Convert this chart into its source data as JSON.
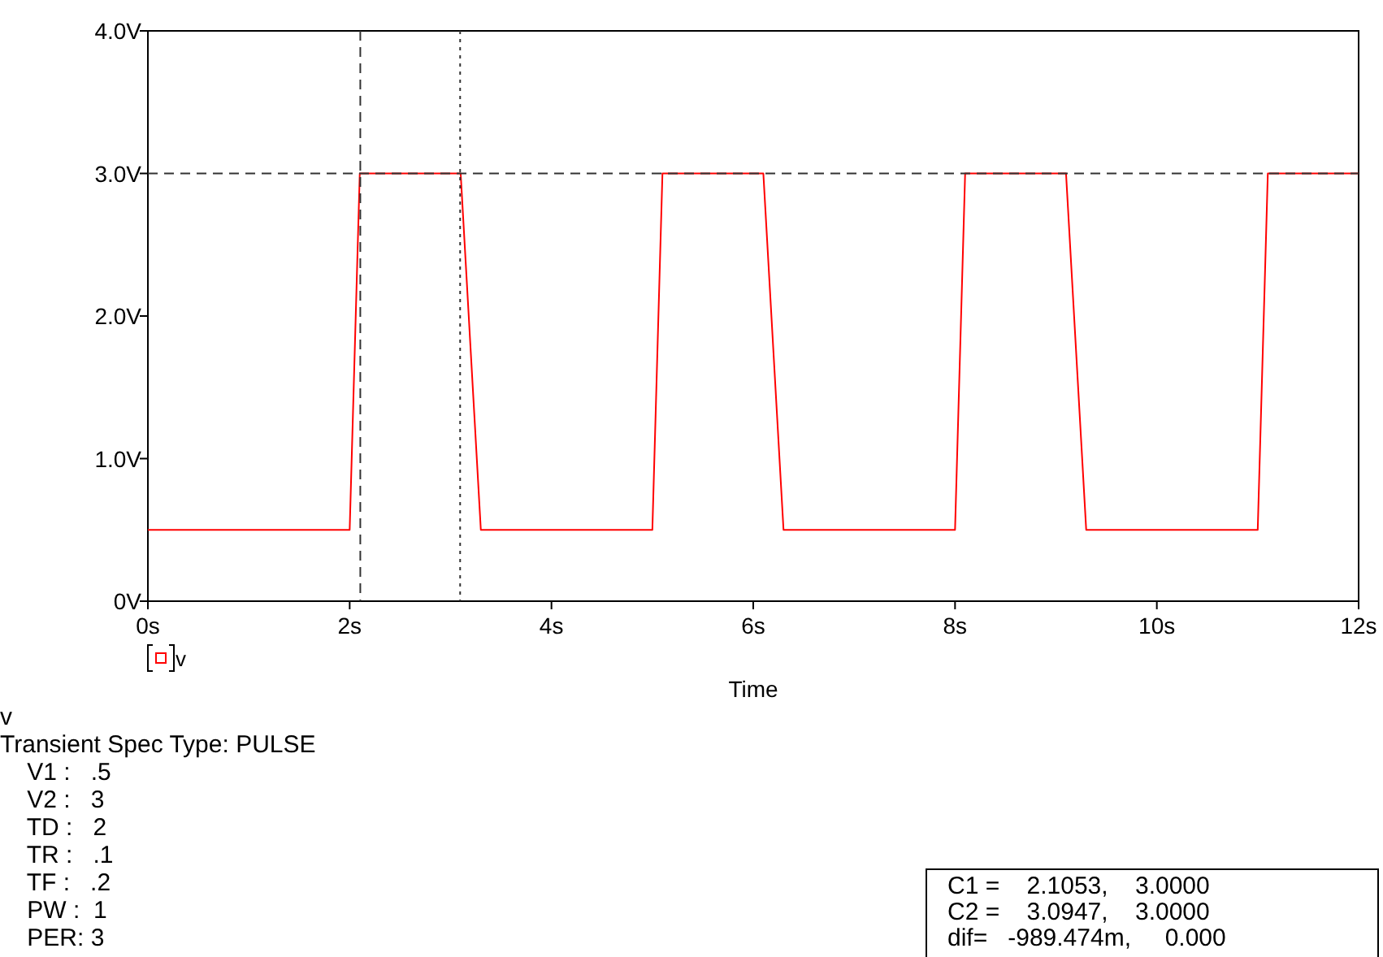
{
  "chart_data": {
    "type": "line",
    "xlabel": "Time",
    "x": [
      0,
      2,
      2.1,
      3.1,
      3.3,
      5,
      5.1,
      6.1,
      6.3,
      8,
      8.1,
      9.1,
      9.3,
      11,
      11.1,
      12
    ],
    "series": [
      {
        "name": "v",
        "color": "#ff0000",
        "values": [
          0.5,
          0.5,
          3,
          3,
          0.5,
          0.5,
          3,
          3,
          0.5,
          0.5,
          3,
          3,
          0.5,
          0.5,
          3,
          3
        ]
      }
    ],
    "xlim": [
      0,
      12
    ],
    "ylim": [
      0,
      4
    ],
    "xticks": [
      {
        "value": 0,
        "label": "0s"
      },
      {
        "value": 2,
        "label": "2s"
      },
      {
        "value": 4,
        "label": "4s"
      },
      {
        "value": 6,
        "label": "6s"
      },
      {
        "value": 8,
        "label": "8s"
      },
      {
        "value": 10,
        "label": "10s"
      },
      {
        "value": 12,
        "label": "12s"
      }
    ],
    "yticks": [
      {
        "value": 0,
        "label": "0V"
      },
      {
        "value": 1,
        "label": "1.0V"
      },
      {
        "value": 2,
        "label": "2.0V"
      },
      {
        "value": 3,
        "label": "3.0V"
      },
      {
        "value": 4,
        "label": "4.0V"
      }
    ],
    "ref_lines": [
      {
        "axis": "x",
        "value": 2.1053,
        "line_style": "dashed"
      },
      {
        "axis": "x",
        "value": 3.0947,
        "line_style": "dotted"
      },
      {
        "axis": "y",
        "value": 3,
        "line_style": "dashed"
      }
    ],
    "grid": false,
    "legend": "bottom left",
    "marker": "none",
    "annotations": [
      "v",
      "Transient Spec Type: PULSE",
      "    V1 :   .5",
      "    V2 :   3",
      "    TD :   2",
      "    TR :   .1",
      "    TF :   .2",
      "    PW :  1",
      "    PER: 3",
      "C1 =    2.1053,    3.0000",
      "C2 =    3.0947,    3.0000",
      "dif=   -989.474m,     0.000"
    ]
  }
}
